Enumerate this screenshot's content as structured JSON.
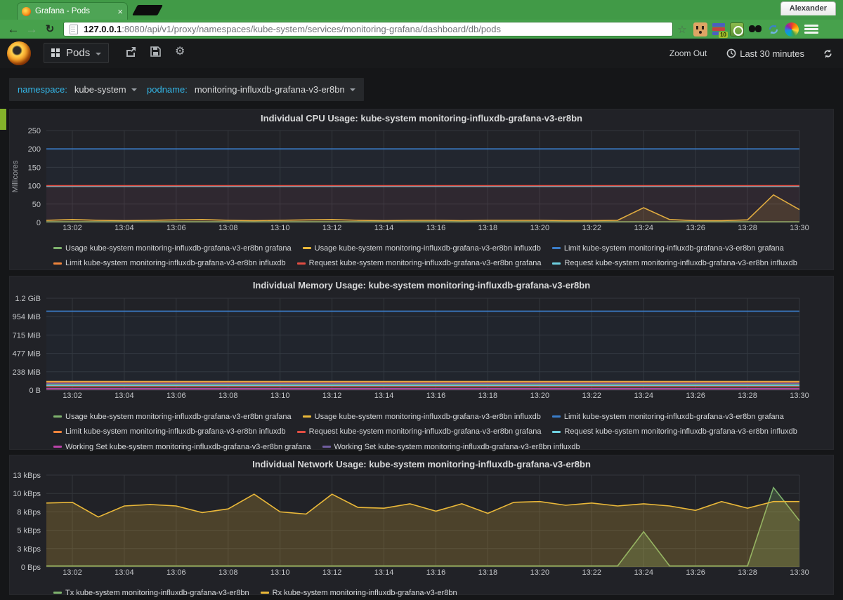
{
  "browser": {
    "tab_title": "Grafana - Pods",
    "profile_name": "Alexander",
    "url_host": "127.0.0.1",
    "url_rest": ":8080/api/v1/proxy/namespaces/kube-system/services/monitoring-grafana/dashboard/db/pods",
    "extension_badge": "10"
  },
  "nav": {
    "dashboard_title": "Pods",
    "zoom_out_label": "Zoom Out",
    "time_range_label": "Last 30 minutes"
  },
  "variables": {
    "namespace_label": "namespace:",
    "namespace_value": "kube-system",
    "podname_label": "podname:",
    "podname_value": "monitoring-influxdb-grafana-v3-er8bn"
  },
  "chart_data": [
    {
      "type": "line",
      "title": "Individual CPU Usage: kube-system monitoring-influxdb-grafana-v3-er8bn",
      "ylabel": "Millicores",
      "grid": true,
      "legend_position": "bottom",
      "x_range": [
        "13:01",
        "13:30"
      ],
      "x_ticks": [
        {
          "m": 2,
          "label": "13:02"
        },
        {
          "m": 4,
          "label": "13:04"
        },
        {
          "m": 6,
          "label": "13:06"
        },
        {
          "m": 8,
          "label": "13:08"
        },
        {
          "m": 10,
          "label": "13:10"
        },
        {
          "m": 12,
          "label": "13:12"
        },
        {
          "m": 14,
          "label": "13:14"
        },
        {
          "m": 16,
          "label": "13:16"
        },
        {
          "m": 18,
          "label": "13:18"
        },
        {
          "m": 20,
          "label": "13:20"
        },
        {
          "m": 22,
          "label": "13:22"
        },
        {
          "m": 24,
          "label": "13:24"
        },
        {
          "m": 26,
          "label": "13:26"
        },
        {
          "m": 28,
          "label": "13:28"
        },
        {
          "m": 30,
          "label": "13:30"
        }
      ],
      "ylim": [
        0,
        250
      ],
      "y_ticks": [
        {
          "v": 0,
          "label": "0"
        },
        {
          "v": 50,
          "label": "50"
        },
        {
          "v": 100,
          "label": "100"
        },
        {
          "v": 150,
          "label": "150"
        },
        {
          "v": 200,
          "label": "200"
        },
        {
          "v": 250,
          "label": "250"
        }
      ],
      "series": [
        {
          "name": "Usage kube-system monitoring-influxdb-grafana-v3-er8bn grafana",
          "color": "#7eb26d",
          "fill": 0.3,
          "values": 2
        },
        {
          "name": "Usage kube-system monitoring-influxdb-grafana-v3-er8bn influxdb",
          "color": "#eab839",
          "fill": 0.15,
          "values": [
            6,
            8,
            6,
            5,
            6,
            7,
            8,
            6,
            5,
            6,
            7,
            8,
            6,
            5,
            6,
            6,
            5,
            6,
            6,
            6,
            5,
            5,
            6,
            40,
            8,
            5,
            5,
            7,
            75,
            35
          ]
        },
        {
          "name": "Limit kube-system monitoring-influxdb-grafana-v3-er8bn grafana",
          "color": "#3a7dc9",
          "fill": 0.05,
          "values": 200
        },
        {
          "name": "Limit kube-system monitoring-influxdb-grafana-v3-er8bn influxdb",
          "color": "#ef843c",
          "fill": 0,
          "values": 99
        },
        {
          "name": "Request kube-system monitoring-influxdb-grafana-v3-er8bn grafana",
          "color": "#e24d42",
          "fill": 0.07,
          "values": 100,
          "z": 10
        },
        {
          "name": "Request kube-system monitoring-influxdb-grafana-v3-er8bn influxdb",
          "color": "#6ed0e0",
          "fill": 0,
          "values": 98
        }
      ]
    },
    {
      "type": "line",
      "title": "Individual Memory Usage: kube-system monitoring-influxdb-grafana-v3-er8bn",
      "ylabel": "",
      "grid": true,
      "legend_position": "bottom",
      "x_range": [
        "13:01",
        "13:30"
      ],
      "x_ticks": [
        {
          "m": 2,
          "label": "13:02"
        },
        {
          "m": 4,
          "label": "13:04"
        },
        {
          "m": 6,
          "label": "13:06"
        },
        {
          "m": 8,
          "label": "13:08"
        },
        {
          "m": 10,
          "label": "13:10"
        },
        {
          "m": 12,
          "label": "13:12"
        },
        {
          "m": 14,
          "label": "13:14"
        },
        {
          "m": 16,
          "label": "13:16"
        },
        {
          "m": 18,
          "label": "13:18"
        },
        {
          "m": 20,
          "label": "13:20"
        },
        {
          "m": 22,
          "label": "13:22"
        },
        {
          "m": 24,
          "label": "13:24"
        },
        {
          "m": 26,
          "label": "13:26"
        },
        {
          "m": 28,
          "label": "13:28"
        },
        {
          "m": 30,
          "label": "13:30"
        }
      ],
      "ylim": [
        0,
        1250
      ],
      "y_unit": "MB",
      "y_ticks": [
        {
          "v": 0,
          "label": "0 B"
        },
        {
          "v": 250,
          "label": "238 MiB"
        },
        {
          "v": 500,
          "label": "477 MiB"
        },
        {
          "v": 750,
          "label": "715 MiB"
        },
        {
          "v": 1000,
          "label": "954 MiB"
        },
        {
          "v": 1250,
          "label": "1.2 GiB"
        }
      ],
      "series": [
        {
          "name": "Usage kube-system monitoring-influxdb-grafana-v3-er8bn grafana",
          "color": "#7eb26d",
          "fill": 0.1,
          "values": 75
        },
        {
          "name": "Usage kube-system monitoring-influxdb-grafana-v3-er8bn influxdb",
          "color": "#eab839",
          "fill": 0.12,
          "values": 118
        },
        {
          "name": "Limit kube-system monitoring-influxdb-grafana-v3-er8bn grafana",
          "color": "#3a7dc9",
          "fill": 0.04,
          "values": 1074
        },
        {
          "name": "Limit kube-system monitoring-influxdb-grafana-v3-er8bn influxdb",
          "color": "#ef843c",
          "fill": 0,
          "values": 110
        },
        {
          "name": "Request kube-system monitoring-influxdb-grafana-v3-er8bn grafana",
          "color": "#e24d42",
          "fill": 0.06,
          "values": 56
        },
        {
          "name": "Request kube-system monitoring-influxdb-grafana-v3-er8bn influxdb",
          "color": "#6ed0e0",
          "fill": 0,
          "values": 64
        },
        {
          "name": "Working Set kube-system monitoring-influxdb-grafana-v3-er8bn grafana",
          "color": "#ba43a9",
          "fill": 0.25,
          "values": 21
        },
        {
          "name": "Working Set kube-system monitoring-influxdb-grafana-v3-er8bn influxdb",
          "color": "#705da0",
          "fill": 0.1,
          "values": 93
        }
      ]
    },
    {
      "type": "line",
      "title": "Individual Network Usage: kube-system monitoring-influxdb-grafana-v3-er8bn",
      "ylabel": "",
      "grid": true,
      "legend_position": "bottom",
      "x_range": [
        "13:01",
        "13:30"
      ],
      "x_ticks": [
        {
          "m": 2,
          "label": "13:02"
        },
        {
          "m": 4,
          "label": "13:04"
        },
        {
          "m": 6,
          "label": "13:06"
        },
        {
          "m": 8,
          "label": "13:08"
        },
        {
          "m": 10,
          "label": "13:10"
        },
        {
          "m": 12,
          "label": "13:12"
        },
        {
          "m": 14,
          "label": "13:14"
        },
        {
          "m": 16,
          "label": "13:16"
        },
        {
          "m": 18,
          "label": "13:18"
        },
        {
          "m": 20,
          "label": "13:20"
        },
        {
          "m": 22,
          "label": "13:22"
        },
        {
          "m": 24,
          "label": "13:24"
        },
        {
          "m": 26,
          "label": "13:26"
        },
        {
          "m": 28,
          "label": "13:28"
        },
        {
          "m": 30,
          "label": "13:30"
        }
      ],
      "ylim": [
        0,
        12.5
      ],
      "y_unit": "kBps",
      "y_ticks": [
        {
          "v": 0,
          "label": "0 Bps"
        },
        {
          "v": 2.5,
          "label": "3 kBps"
        },
        {
          "v": 5,
          "label": "5 kBps"
        },
        {
          "v": 7.5,
          "label": "8 kBps"
        },
        {
          "v": 10,
          "label": "10 kBps"
        },
        {
          "v": 12.5,
          "label": "13 kBps"
        }
      ],
      "series": [
        {
          "name": "Tx kube-system monitoring-influxdb-grafana-v3-er8bn",
          "color": "#7eb26d",
          "fill": 0.25,
          "values": [
            0.15,
            0.15,
            0.15,
            0.15,
            0.15,
            0.15,
            0.15,
            0.15,
            0.15,
            0.15,
            0.15,
            0.15,
            0.15,
            0.15,
            0.15,
            0.15,
            0.15,
            0.15,
            0.15,
            0.15,
            0.15,
            0.15,
            0.15,
            4.8,
            0.15,
            0.15,
            0.15,
            0.15,
            10.8,
            6.3
          ]
        },
        {
          "name": "Rx kube-system monitoring-influxdb-grafana-v3-er8bn",
          "color": "#eab839",
          "fill": 0.22,
          "values": [
            8.7,
            8.8,
            6.8,
            8.3,
            8.5,
            8.3,
            7.4,
            7.9,
            9.9,
            7.5,
            7.2,
            9.9,
            8.1,
            8.0,
            8.6,
            7.6,
            8.6,
            7.3,
            8.8,
            8.9,
            8.4,
            8.7,
            8.3,
            8.6,
            8.3,
            7.7,
            8.9,
            8.0,
            8.9,
            8.9
          ]
        }
      ]
    }
  ]
}
